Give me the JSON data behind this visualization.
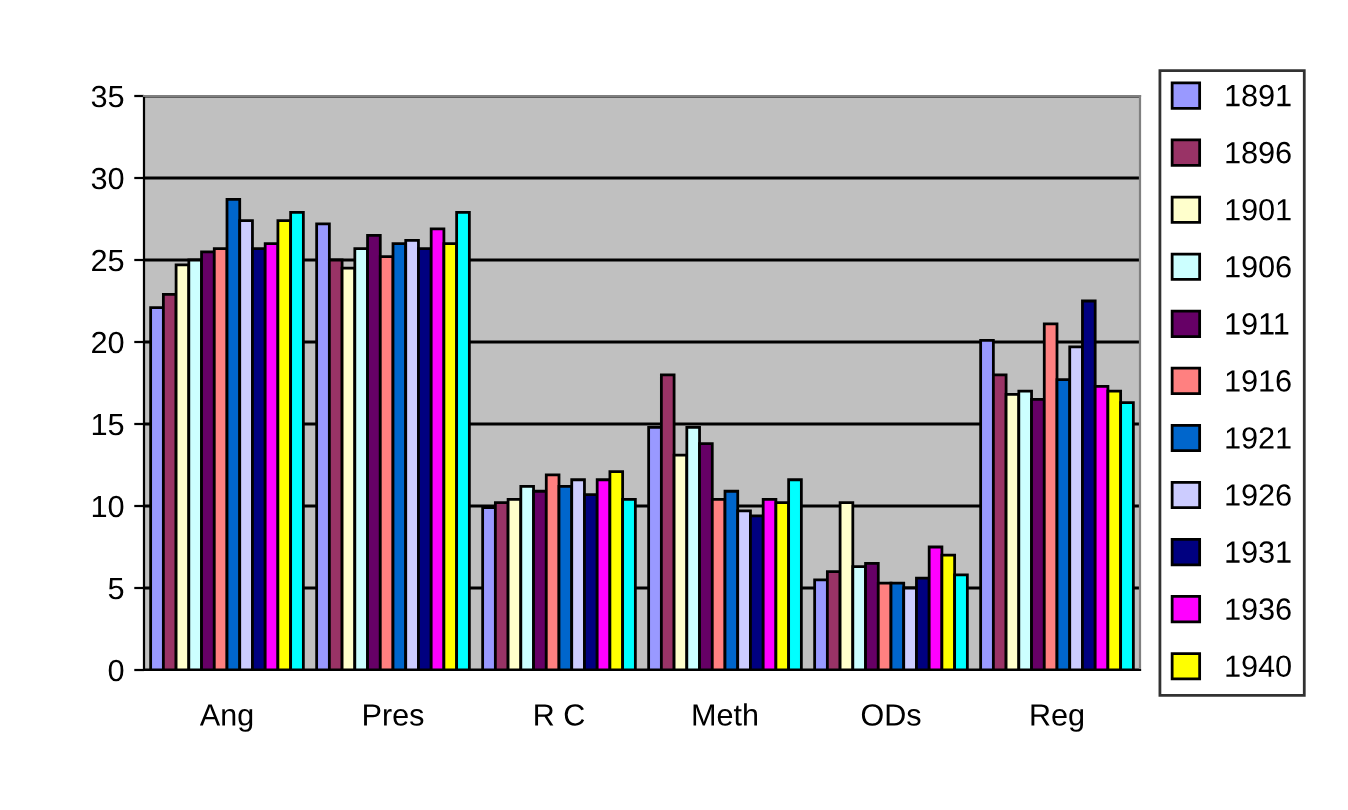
{
  "chart_data": {
    "type": "bar",
    "categories": [
      "Ang",
      "Pres",
      "R C",
      "Meth",
      "ODs",
      "Reg"
    ],
    "ylim": [
      0,
      35
    ],
    "yticks": [
      0,
      5,
      10,
      15,
      20,
      25,
      30,
      35
    ],
    "grid": "y",
    "legend": "right",
    "series": [
      {
        "name": "1891",
        "color": "#9999ff",
        "values": [
          22.1,
          27.2,
          9.9,
          14.8,
          5.5,
          20.1
        ]
      },
      {
        "name": "1896",
        "color": "#993366",
        "values": [
          22.9,
          25.0,
          10.2,
          18.0,
          6.0,
          18.0
        ]
      },
      {
        "name": "1901",
        "color": "#ffffcc",
        "values": [
          24.7,
          24.5,
          10.4,
          13.1,
          10.2,
          16.8
        ]
      },
      {
        "name": "1906",
        "color": "#ccffff",
        "values": [
          25.0,
          25.7,
          11.2,
          14.8,
          6.3,
          17.0
        ]
      },
      {
        "name": "1911",
        "color": "#660066",
        "values": [
          25.5,
          26.5,
          10.9,
          13.8,
          6.5,
          16.5
        ]
      },
      {
        "name": "1916",
        "color": "#ff8080",
        "values": [
          25.7,
          25.2,
          11.9,
          10.4,
          5.3,
          21.1
        ]
      },
      {
        "name": "1921",
        "color": "#0066cc",
        "values": [
          28.7,
          26.0,
          11.2,
          10.9,
          5.3,
          17.7
        ]
      },
      {
        "name": "1926",
        "color": "#ccccff",
        "values": [
          27.4,
          26.2,
          11.6,
          9.7,
          5.0,
          19.7
        ]
      },
      {
        "name": "1931",
        "color": "#000080",
        "values": [
          25.7,
          25.7,
          10.7,
          9.4,
          5.6,
          22.5
        ]
      },
      {
        "name": "1936",
        "color": "#ff00ff",
        "values": [
          26.0,
          26.9,
          11.6,
          10.4,
          7.5,
          17.3
        ]
      },
      {
        "name": "1940",
        "color": "#ffff00",
        "values": [
          27.4,
          26.0,
          12.1,
          10.2,
          7.0,
          17.0
        ]
      },
      {
        "color": "#00ffff",
        "values": [
          27.9,
          27.9,
          10.4,
          11.6,
          5.8,
          16.3
        ]
      }
    ]
  }
}
